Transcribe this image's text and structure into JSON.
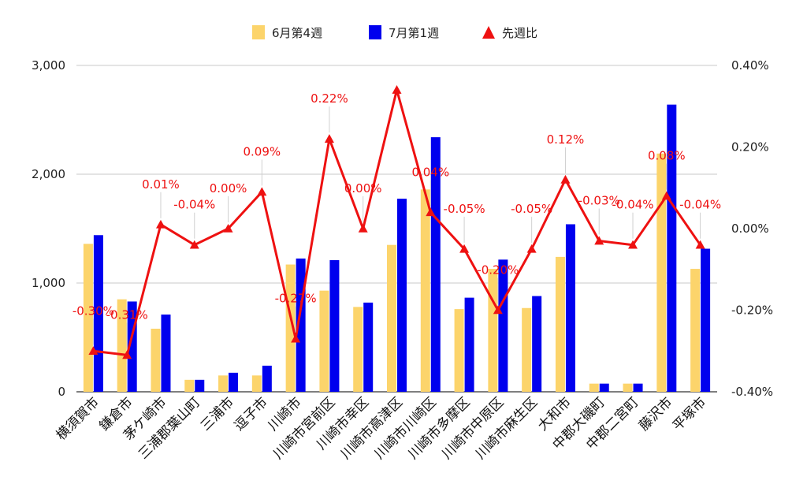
{
  "chart_data": {
    "type": "bar",
    "categories": [
      "横須賀市",
      "鎌倉市",
      "茅ケ崎市",
      "三浦郡葉山町",
      "三浦市",
      "逗子市",
      "川崎市",
      "川崎市宮前区",
      "川崎市幸区",
      "川崎市高津区",
      "川崎市川崎区",
      "川崎市多摩区",
      "川崎市中原区",
      "川崎市麻生区",
      "大和市",
      "中郡大磯町",
      "中郡二宮町",
      "藤沢市",
      "平塚市"
    ],
    "series": [
      {
        "name": "6月第4週",
        "kind": "bar",
        "axis": "left",
        "color": "#fcd46b",
        "values": [
          1360,
          850,
          580,
          110,
          150,
          150,
          1170,
          930,
          780,
          1350,
          1860,
          760,
          1130,
          770,
          1240,
          75,
          75,
          2190,
          1130
        ]
      },
      {
        "name": "7月第1週",
        "kind": "bar",
        "axis": "left",
        "color": "#0000ee",
        "values": [
          1440,
          830,
          710,
          110,
          175,
          240,
          1225,
          1210,
          820,
          1775,
          2340,
          865,
          1215,
          880,
          1540,
          75,
          75,
          2640,
          1315
        ]
      },
      {
        "name": "先週比",
        "kind": "line",
        "axis": "right",
        "color": "#ee1111",
        "values": [
          -0.3,
          -0.31,
          0.01,
          -0.04,
          0.0,
          0.09,
          -0.27,
          0.22,
          0.0,
          0.34,
          0.04,
          -0.05,
          -0.2,
          -0.05,
          0.12,
          -0.03,
          -0.04,
          0.08,
          -0.04
        ],
        "labels": [
          "-0.30%",
          "-0.31%",
          "0.01%",
          "-0.04%",
          "0.00%",
          "0.09%",
          "-0.27%",
          "0.22%",
          "0.00%",
          "",
          "0.04%",
          "-0.05%",
          "-0.20%",
          "-0.05%",
          "0.12%",
          "-0.03%",
          "-0.04%",
          "0.08%",
          "-0.04%"
        ]
      }
    ],
    "y_left": {
      "min": 0,
      "max": 3000,
      "ticks": [
        0,
        1000,
        2000,
        3000
      ],
      "tick_labels": [
        "0",
        "1,000",
        "2,000",
        "3,000"
      ]
    },
    "y_right": {
      "min": -0.4,
      "max": 0.4,
      "ticks": [
        -0.4,
        -0.2,
        0,
        0.2,
        0.4
      ],
      "tick_labels": [
        "-0.40%",
        "-0.20%",
        "0.00%",
        "0.20%",
        "0.40%"
      ]
    },
    "grid": true,
    "legend_position": "top-center",
    "title": "",
    "xlabel": "",
    "ylabel": ""
  }
}
